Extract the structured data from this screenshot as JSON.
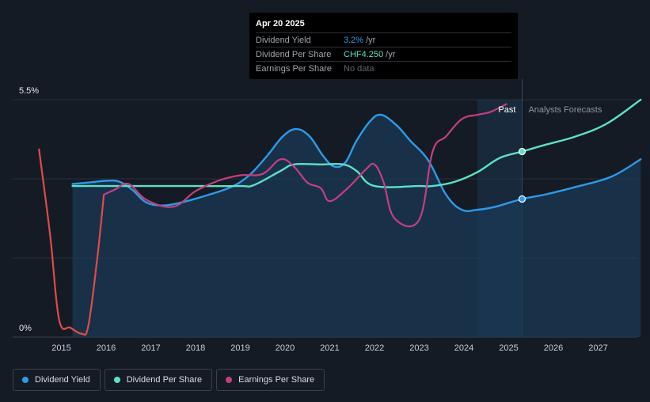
{
  "tooltip": {
    "date": "Apr 20 2025",
    "rows": [
      {
        "name": "Dividend Yield",
        "value": "3.2%",
        "unit": "/yr"
      },
      {
        "name": "Dividend Per Share",
        "value": "CHF4.250",
        "unit": "/yr"
      },
      {
        "name": "Earnings Per Share",
        "value": "No data",
        "unit": ""
      }
    ]
  },
  "regions": {
    "past": "Past",
    "forecast": "Analysts Forecasts"
  },
  "legend": [
    {
      "label": "Dividend Yield",
      "color": "#2f9ae8"
    },
    {
      "label": "Dividend Per Share",
      "color": "#5de0c8"
    },
    {
      "label": "Earnings Per Share",
      "color": "#c2407f"
    }
  ],
  "chart_data": {
    "type": "line",
    "x_ticks": [
      "2015",
      "2016",
      "2017",
      "2018",
      "2019",
      "2020",
      "2021",
      "2022",
      "2023",
      "2024",
      "2025",
      "2026",
      "2027"
    ],
    "y_tick_labels": [
      "0%",
      "5.5%"
    ],
    "ylim": [
      0,
      5.5
    ],
    "xlim": [
      2014.35,
      2027.95
    ],
    "grid": true,
    "legend_position": "bottom-left",
    "forecast_start": 2024.3,
    "current_date": 2025.3,
    "series": [
      {
        "name": "Dividend Yield",
        "color": "#2f9ae8",
        "area": true,
        "points": [
          [
            2015.25,
            3.55
          ],
          [
            2015.6,
            3.58
          ],
          [
            2016.0,
            3.62
          ],
          [
            2016.3,
            3.6
          ],
          [
            2016.6,
            3.4
          ],
          [
            2016.9,
            3.12
          ],
          [
            2017.3,
            3.05
          ],
          [
            2017.8,
            3.15
          ],
          [
            2018.3,
            3.3
          ],
          [
            2018.8,
            3.48
          ],
          [
            2019.2,
            3.75
          ],
          [
            2019.6,
            4.2
          ],
          [
            2019.95,
            4.65
          ],
          [
            2020.25,
            4.82
          ],
          [
            2020.55,
            4.65
          ],
          [
            2020.85,
            4.2
          ],
          [
            2021.1,
            3.95
          ],
          [
            2021.35,
            4.05
          ],
          [
            2021.6,
            4.55
          ],
          [
            2021.9,
            5.0
          ],
          [
            2022.15,
            5.15
          ],
          [
            2022.5,
            4.9
          ],
          [
            2022.8,
            4.55
          ],
          [
            2023.2,
            4.1
          ],
          [
            2023.6,
            3.3
          ],
          [
            2023.95,
            2.95
          ],
          [
            2024.3,
            2.95
          ],
          [
            2024.7,
            3.02
          ],
          [
            2025.3,
            3.2
          ],
          [
            2025.8,
            3.3
          ],
          [
            2026.5,
            3.48
          ],
          [
            2027.3,
            3.72
          ],
          [
            2027.95,
            4.12
          ]
        ]
      },
      {
        "name": "Dividend Per Share",
        "color": "#5de0c8",
        "points": [
          [
            2015.25,
            3.5
          ],
          [
            2016.0,
            3.5
          ],
          [
            2017.0,
            3.5
          ],
          [
            2018.0,
            3.5
          ],
          [
            2019.0,
            3.5
          ],
          [
            2019.3,
            3.52
          ],
          [
            2019.9,
            3.85
          ],
          [
            2020.2,
            4.0
          ],
          [
            2020.8,
            4.0
          ],
          [
            2021.3,
            4.0
          ],
          [
            2021.6,
            3.85
          ],
          [
            2022.0,
            3.5
          ],
          [
            2023.0,
            3.5
          ],
          [
            2023.3,
            3.5
          ],
          [
            2023.8,
            3.6
          ],
          [
            2024.3,
            3.82
          ],
          [
            2024.8,
            4.15
          ],
          [
            2025.3,
            4.3
          ],
          [
            2025.8,
            4.45
          ],
          [
            2026.5,
            4.65
          ],
          [
            2027.2,
            4.95
          ],
          [
            2027.95,
            5.5
          ]
        ]
      },
      {
        "name": "Earnings Per Share",
        "color": "#c2407f",
        "negative_color": "#e04a4a",
        "negative_until": 2015.9,
        "points": [
          [
            2014.5,
            4.35
          ],
          [
            2014.75,
            2.35
          ],
          [
            2014.95,
            0.4
          ],
          [
            2015.2,
            0.22
          ],
          [
            2015.45,
            0.08
          ],
          [
            2015.6,
            0.25
          ],
          [
            2015.8,
            1.8
          ],
          [
            2015.95,
            3.3
          ],
          [
            2016.2,
            3.42
          ],
          [
            2016.5,
            3.55
          ],
          [
            2016.9,
            3.18
          ],
          [
            2017.5,
            3.02
          ],
          [
            2018.0,
            3.38
          ],
          [
            2018.5,
            3.62
          ],
          [
            2019.0,
            3.75
          ],
          [
            2019.5,
            3.78
          ],
          [
            2019.9,
            4.12
          ],
          [
            2020.2,
            3.95
          ],
          [
            2020.5,
            3.58
          ],
          [
            2020.8,
            3.45
          ],
          [
            2021.0,
            3.15
          ],
          [
            2021.4,
            3.45
          ],
          [
            2021.8,
            3.88
          ],
          [
            2022.0,
            4.0
          ],
          [
            2022.2,
            3.6
          ],
          [
            2022.45,
            2.75
          ],
          [
            2023.0,
            2.72
          ],
          [
            2023.3,
            4.3
          ],
          [
            2023.6,
            4.65
          ],
          [
            2023.95,
            5.05
          ],
          [
            2024.3,
            5.15
          ],
          [
            2024.6,
            5.22
          ],
          [
            2024.95,
            5.4
          ]
        ]
      }
    ],
    "markers": [
      {
        "series": "Dividend Per Share",
        "x": 2025.3,
        "y": 4.3
      },
      {
        "series": "Dividend Yield",
        "x": 2025.3,
        "y": 3.2
      }
    ]
  }
}
